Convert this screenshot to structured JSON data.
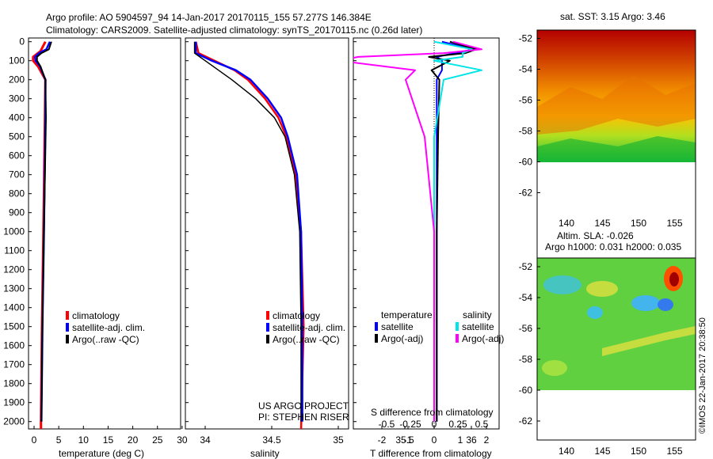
{
  "header": {
    "line1": "Argo profile: AO 5904597_94 14-Jan-2017 20170115_155 57.277S 146.384E",
    "line2": "Climatology: CARS2009. Satellite-adjusted climatology: synTS_20170115.nc (0.26d later)"
  },
  "panels": {
    "depth_ticks": [
      "0",
      "100",
      "200",
      "300",
      "400",
      "500",
      "600",
      "700",
      "800",
      "900",
      "1000",
      "1100",
      "1200",
      "1300",
      "1400",
      "1500",
      "1600",
      "1700",
      "1800",
      "1900",
      "2000"
    ],
    "temperature": {
      "xlabel": "temperature (deg C)",
      "xticks": [
        "0",
        "5",
        "10",
        "15",
        "20",
        "25",
        "30"
      ],
      "legend": [
        "climatology",
        "satellite-adj. clim.",
        "Argo(..raw -QC)"
      ]
    },
    "salinity": {
      "xlabel": "salinity",
      "xticks": [
        "34",
        "34.5",
        "35",
        "35.5",
        "36"
      ],
      "legend": [
        "climatology",
        "satellite-adj. clim.",
        "Argo(..raw -QC)"
      ],
      "project_line1": "US ARGO PROJECT",
      "project_line2": "PI: STEPHEN RISER"
    },
    "difference": {
      "xlabel": "T difference from climatology",
      "toplabel": "S difference from climatology",
      "top_ticks": [
        "-0.5",
        "-0.25",
        "0",
        "0.25",
        "0.5"
      ],
      "bottom_ticks": [
        "-2",
        "-1",
        "0",
        "1",
        "2"
      ],
      "legend_head_temp": "temperature",
      "legend_head_sal": "salinity",
      "legend_temp": [
        "satellite",
        "Argo(-adj)"
      ],
      "legend_sal": [
        "satellite",
        "Argo(-adj)"
      ]
    }
  },
  "maps": {
    "sst_title": "sat. SST: 3.15 Argo: 3.46",
    "sla_title1": "Altim. SLA: -0.026",
    "sla_title2": "Argo h1000: 0.031 h2000: 0.035",
    "lat_ticks": [
      "-52",
      "-54",
      "-56",
      "-58",
      "-60",
      "-62"
    ],
    "lon_ticks": [
      "140",
      "145",
      "150",
      "155"
    ],
    "watermark": "©IMOS 22-Jan-2017 20:38:50"
  },
  "colors": {
    "climatology": "#ff0000",
    "satellite": "#0000ff",
    "argo": "#000000",
    "s_satellite": "#00e5e5",
    "s_argo": "#ff00ff"
  },
  "chart_data": [
    {
      "type": "line",
      "xlabel": "temperature (deg C)",
      "xlim": [
        -1,
        31
      ],
      "ylim": [
        2050,
        0
      ],
      "series": [
        {
          "name": "climatology",
          "depth": [
            0,
            50,
            80,
            100,
            130,
            200,
            400,
            1000,
            1500,
            2000,
            2050
          ],
          "values": [
            2.3,
            1.3,
            -0.2,
            -0.2,
            0.8,
            2.3,
            2.2,
            1.9,
            1.6,
            1.4,
            1.4
          ]
        },
        {
          "name": "satellite-adj. clim.",
          "depth": [
            0,
            40,
            60,
            80,
            100,
            130,
            200,
            400,
            1000,
            1500,
            2000
          ],
          "values": [
            3.2,
            2.5,
            1.0,
            0.2,
            0.3,
            1.2,
            2.3,
            2.3,
            2.0,
            1.7,
            1.5
          ]
        },
        {
          "name": "Argo(..raw -QC)",
          "depth": [
            0,
            40,
            60,
            80,
            100,
            130,
            200,
            400,
            1000,
            1500,
            2000
          ],
          "values": [
            3.5,
            3.0,
            1.5,
            0.6,
            0.6,
            1.3,
            2.3,
            2.4,
            2.0,
            1.7,
            1.5
          ]
        }
      ]
    },
    {
      "type": "line",
      "xlabel": "salinity",
      "xlim": [
        33.8,
        36.1
      ],
      "ylim": [
        2050,
        0
      ],
      "series": [
        {
          "name": "climatology",
          "depth": [
            0,
            60,
            100,
            150,
            200,
            300,
            400,
            500,
            700,
            1000,
            1500,
            2050
          ],
          "values": [
            33.93,
            33.95,
            34.07,
            34.22,
            34.32,
            34.45,
            34.55,
            34.61,
            34.68,
            34.72,
            34.74,
            34.72
          ]
        },
        {
          "name": "satellite-adj. clim.",
          "depth": [
            0,
            60,
            100,
            150,
            200,
            300,
            400,
            500,
            700,
            1000,
            1500,
            2000
          ],
          "values": [
            33.93,
            33.93,
            34.05,
            34.23,
            34.34,
            34.47,
            34.57,
            34.62,
            34.69,
            34.72,
            34.73,
            34.73
          ]
        },
        {
          "name": "Argo(..raw -QC)",
          "depth": [
            0,
            60,
            100,
            150,
            200,
            300,
            400,
            500,
            700,
            1000,
            1500,
            2000
          ],
          "values": [
            33.92,
            33.92,
            34.0,
            34.1,
            34.2,
            34.38,
            34.52,
            34.6,
            34.67,
            34.71,
            34.72,
            34.72
          ]
        }
      ]
    },
    {
      "type": "line",
      "xlabel": "T difference from climatology",
      "xlim": [
        -2.5,
        2.5
      ],
      "ylim": [
        2050,
        0
      ],
      "series": [
        {
          "name": "temperature satellite",
          "depth": [
            0,
            40,
            60,
            80,
            100,
            150,
            200,
            500,
            1000,
            2000
          ],
          "values": [
            0.3,
            1.5,
            0.8,
            0.1,
            0.3,
            0.3,
            0.1,
            0.1,
            0.1,
            0.1
          ]
        },
        {
          "name": "temperature Argo(-adj)",
          "depth": [
            0,
            40,
            60,
            80,
            100,
            150,
            200,
            500,
            1000,
            2000
          ],
          "values": [
            0.6,
            1.6,
            1.2,
            -0.2,
            0.6,
            -0.1,
            0.2,
            0.15,
            0.1,
            0.1
          ]
        },
        {
          "name": "salinity satellite",
          "depth": [
            0,
            40,
            60,
            80,
            100,
            150,
            200,
            500,
            1000,
            2000
          ],
          "values": [
            0.0,
            0.4,
            0.3,
            0.3,
            0.0,
            0.5,
            0.1,
            0.0,
            0.0,
            0.0
          ]
        },
        {
          "name": "salinity Argo(-adj)",
          "depth": [
            0,
            40,
            60,
            80,
            100,
            150,
            200,
            500,
            1000,
            2000
          ],
          "values": [
            0.2,
            0.5,
            0.1,
            -0.8,
            -1.0,
            -0.2,
            -0.3,
            -0.1,
            0.0,
            0.0
          ]
        }
      ]
    },
    {
      "type": "heatmap",
      "title": "sat. SST: 3.15 Argo: 3.46",
      "xlim": [
        137,
        156
      ],
      "ylim": [
        -64,
        -51
      ]
    },
    {
      "type": "heatmap",
      "title": "Altim. SLA: -0.026",
      "xlim": [
        137,
        156
      ],
      "ylim": [
        -64,
        -51
      ]
    }
  ]
}
